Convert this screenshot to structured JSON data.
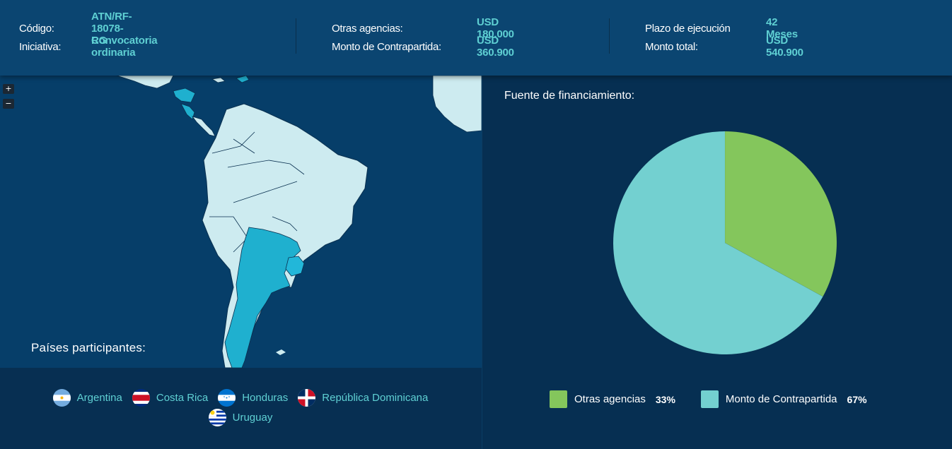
{
  "header": {
    "codigo_label": "Código:",
    "codigo_value": "ATN/RF-18078-RG",
    "iniciativa_label": "Iniciativa:",
    "iniciativa_value": "Convocatoria ordinaria",
    "otras_label": "Otras agencias:",
    "otras_value": "USD 180.000",
    "contrapartida_label": "Monto de Contrapartida:",
    "contrapartida_value": "USD 360.900",
    "plazo_label": "Plazo de ejecución",
    "plazo_value": "42 Meses",
    "total_label": "Monto total:",
    "total_value": "USD 540.900"
  },
  "map": {
    "zoom_in": "+",
    "zoom_out": "−",
    "countries_title": "Países participantes:",
    "countries": [
      {
        "name": "Argentina",
        "flag": "argentina-flag"
      },
      {
        "name": "Costa Rica",
        "flag": "costa-rica-flag"
      },
      {
        "name": "Honduras",
        "flag": "honduras-flag"
      },
      {
        "name": "República Dominicana",
        "flag": "dominican-republic-flag"
      },
      {
        "name": "Uruguay",
        "flag": "uruguay-flag"
      }
    ],
    "colors": {
      "ocean": "#063e69",
      "land": "#cdebf0",
      "participant": "#1fb0cf"
    }
  },
  "funding": {
    "title": "Fuente de financiamiento:",
    "legend": [
      {
        "label": "Otras agencias",
        "pct": "33%",
        "color": "#84c65c"
      },
      {
        "label": "Monto de Contrapartida",
        "pct": "67%",
        "color": "#73d0d0"
      }
    ]
  },
  "chart_data": {
    "type": "pie",
    "title": "Fuente de financiamiento:",
    "categories": [
      "Otras agencias",
      "Monto de Contrapartida"
    ],
    "values": [
      33,
      67
    ],
    "colors": [
      "#84c65c",
      "#73d0d0"
    ]
  }
}
